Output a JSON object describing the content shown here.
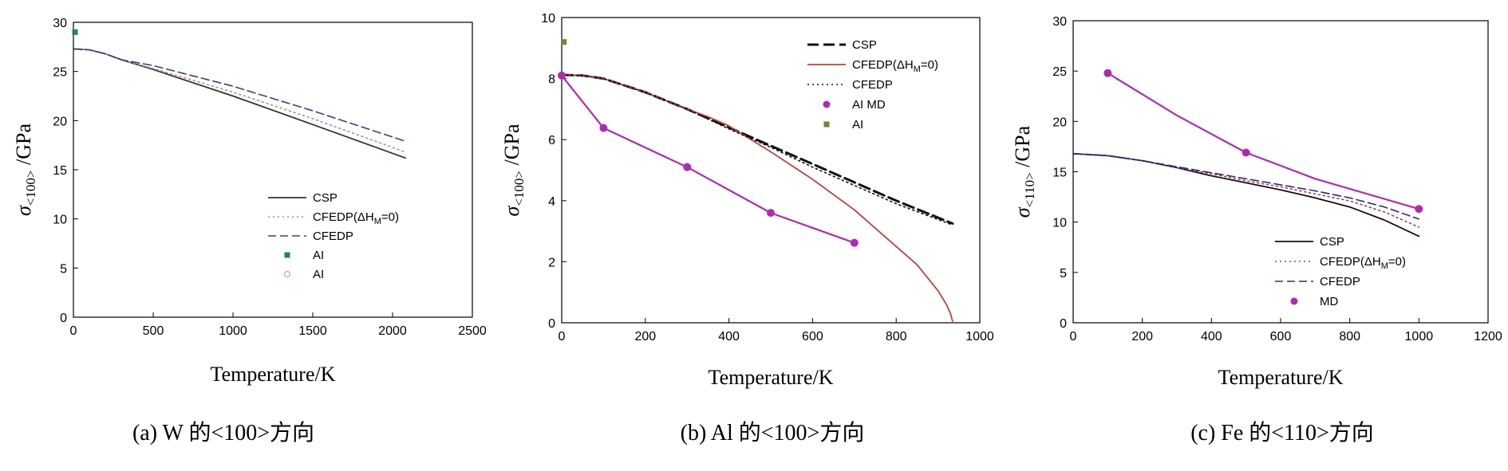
{
  "chart_data": [
    {
      "type": "line",
      "caption": "(a) W 的<100>方向",
      "xlabel": "Temperature/K",
      "ylabel_main": "σ",
      "ylabel_sub": "<100>",
      "ylabel_unit": " /GPa",
      "xlim": [
        0,
        2500
      ],
      "ylim": [
        0,
        30
      ],
      "xticks": [
        0,
        500,
        1000,
        1500,
        2000,
        2500
      ],
      "yticks": [
        0,
        5,
        10,
        15,
        20,
        25,
        30
      ],
      "grid": false,
      "legend_position": "lower-right",
      "series": [
        {
          "name": "CSP",
          "style": "solid",
          "color": "#333333",
          "x": [
            0,
            100,
            200,
            300,
            500,
            1000,
            1500,
            2080
          ],
          "y": [
            27.3,
            27.2,
            26.8,
            26.2,
            25.2,
            22.5,
            19.6,
            16.2
          ]
        },
        {
          "name": "CFEDP(ΔH_M=0)",
          "style": "dotted",
          "color": "#c08888",
          "x": [
            0,
            100,
            200,
            300,
            500,
            1000,
            1500,
            2080
          ],
          "y": [
            27.3,
            27.2,
            26.8,
            26.2,
            25.3,
            22.9,
            20.2,
            16.8
          ]
        },
        {
          "name": "CFEDP",
          "style": "dashed",
          "color": "#3d3d80",
          "x": [
            0,
            100,
            200,
            300,
            500,
            1000,
            1500,
            2080
          ],
          "y": [
            27.3,
            27.2,
            26.8,
            26.2,
            25.6,
            23.5,
            21.0,
            17.9
          ]
        },
        {
          "name": "AI",
          "style": "marker-square",
          "color": "#2a7a80",
          "x": [
            10
          ],
          "y": [
            29.0
          ]
        },
        {
          "name": "AI",
          "style": "marker-open-circle",
          "color": "#d89aa8",
          "x": [],
          "y": []
        }
      ]
    },
    {
      "type": "line",
      "caption": "(b) Al 的<100>方向",
      "xlabel": "Temperature/K",
      "ylabel_main": "σ",
      "ylabel_sub": "<100>",
      "ylabel_unit": " /GPa",
      "xlim": [
        0,
        1000
      ],
      "ylim": [
        0,
        10
      ],
      "xticks": [
        0,
        200,
        400,
        600,
        800,
        1000
      ],
      "yticks": [
        0,
        2,
        4,
        6,
        8,
        10
      ],
      "grid": false,
      "legend_position": "top-right",
      "series": [
        {
          "name": "CSP",
          "style": "dashed-bold",
          "color": "#111111",
          "x": [
            0,
            50,
            100,
            200,
            300,
            400,
            500,
            600,
            700,
            800,
            935
          ],
          "y": [
            8.12,
            8.1,
            8.0,
            7.55,
            7.0,
            6.4,
            5.8,
            5.2,
            4.6,
            4.0,
            3.25
          ]
        },
        {
          "name": "CFEDP(ΔH_M=0)",
          "style": "solid",
          "color": "#b8443a",
          "x": [
            0,
            50,
            100,
            200,
            300,
            350,
            400,
            500,
            600,
            700,
            800,
            850,
            900,
            920,
            930,
            935
          ],
          "y": [
            8.12,
            8.1,
            8.0,
            7.55,
            7.0,
            6.75,
            6.45,
            5.6,
            4.7,
            3.7,
            2.5,
            1.9,
            1.05,
            0.6,
            0.3,
            0.05
          ]
        },
        {
          "name": "CFEDP",
          "style": "dotted",
          "color": "#111111",
          "x": [
            0,
            50,
            100,
            200,
            300,
            400,
            500,
            600,
            700,
            800,
            935
          ],
          "y": [
            8.12,
            8.1,
            8.0,
            7.55,
            7.0,
            6.35,
            5.75,
            5.1,
            4.5,
            3.9,
            3.2
          ]
        },
        {
          "name": "AI MD",
          "style": "line-marker-circle",
          "color": "#b02ab0",
          "x": [
            0,
            100,
            300,
            500,
            700
          ],
          "y": [
            8.1,
            6.38,
            5.1,
            3.6,
            2.62
          ]
        },
        {
          "name": "AI",
          "style": "marker-square",
          "color": "#6a8a2a",
          "x": [
            5
          ],
          "y": [
            9.2
          ]
        }
      ]
    },
    {
      "type": "line",
      "caption": "(c) Fe 的<110>方向",
      "xlabel": "Temperature/K",
      "ylabel_main": "σ",
      "ylabel_sub": "<110>",
      "ylabel_unit": " /GPa",
      "xlim": [
        0,
        1200
      ],
      "ylim": [
        0,
        30
      ],
      "xticks": [
        0,
        200,
        400,
        600,
        800,
        1000,
        1200
      ],
      "yticks": [
        0,
        5,
        10,
        15,
        20,
        25,
        30
      ],
      "grid": false,
      "legend_position": "lower-right",
      "series": [
        {
          "name": "CSP",
          "style": "solid",
          "color": "#111111",
          "x": [
            0,
            100,
            200,
            300,
            400,
            500,
            600,
            700,
            800,
            900,
            1000
          ],
          "y": [
            16.8,
            16.6,
            16.1,
            15.4,
            14.6,
            13.9,
            13.2,
            12.4,
            11.5,
            10.2,
            8.6
          ]
        },
        {
          "name": "CFEDP(ΔH_M=0)",
          "style": "dotted",
          "color": "#a04040",
          "x": [
            0,
            100,
            200,
            300,
            400,
            500,
            600,
            700,
            800,
            900,
            1000
          ],
          "y": [
            16.8,
            16.6,
            16.1,
            15.4,
            14.8,
            14.1,
            13.5,
            12.8,
            12.1,
            11.0,
            9.5
          ]
        },
        {
          "name": "CFEDP",
          "style": "dashed",
          "color": "#2c2c80",
          "x": [
            0,
            100,
            200,
            300,
            400,
            500,
            600,
            700,
            800,
            900,
            1000
          ],
          "y": [
            16.8,
            16.6,
            16.1,
            15.5,
            14.9,
            14.3,
            13.7,
            13.1,
            12.4,
            11.5,
            10.3
          ]
        },
        {
          "name": "MD",
          "style": "line-marker-circle",
          "color": "#b02ab0",
          "x": [
            100,
            300,
            500,
            700,
            1000
          ],
          "y": [
            24.8,
            20.6,
            16.9,
            14.3,
            11.3
          ],
          "markers_at": [
            100,
            500,
            1000
          ]
        }
      ]
    }
  ]
}
